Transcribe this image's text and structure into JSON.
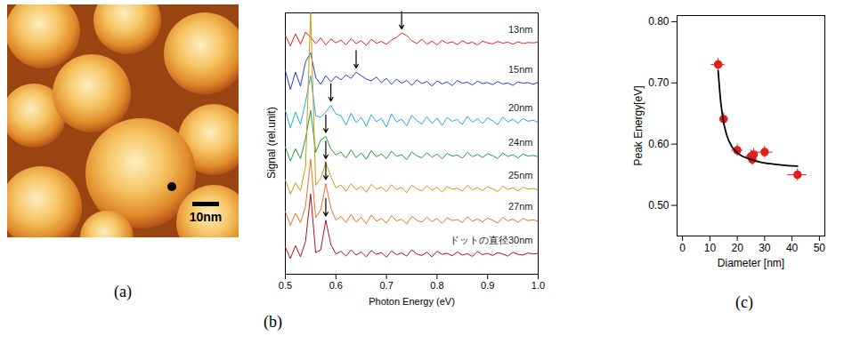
{
  "chart_data": [
    {
      "type": "image",
      "panel": "(a)",
      "scale_bar": "10nm"
    },
    {
      "type": "line",
      "panel": "(b)",
      "xlabel": "Photon Energy (eV)",
      "ylabel": "Signal (rel.unit)",
      "xlim": [
        0.5,
        1.0
      ],
      "ylim": [
        0,
        7.5
      ],
      "xticks": [
        0.5,
        0.6,
        0.7,
        0.8,
        0.9,
        {
          "value": 1,
          "label": "1.0"
        }
      ],
      "tick_labels": "x",
      "x": [
        0.5,
        0.51,
        0.52,
        0.53,
        0.54,
        0.55,
        0.56,
        0.57,
        0.58,
        0.59,
        0.6,
        0.61,
        0.62,
        0.63,
        0.64,
        0.65,
        0.66,
        0.67,
        0.68,
        0.69,
        0.7,
        0.71,
        0.72,
        0.73,
        0.74,
        0.75,
        0.76,
        0.77,
        0.78,
        0.79,
        0.8,
        0.81,
        0.82,
        0.83,
        0.84,
        0.85,
        0.86,
        0.87,
        0.88,
        0.89,
        0.9,
        0.91,
        0.92,
        0.93,
        0.94,
        0.95,
        0.96,
        0.97,
        0.98,
        0.99,
        1.0
      ],
      "series": [
        {
          "name": "13nm",
          "color": "#e8201c",
          "peak": 0.73,
          "values": [
            6.85,
            6.55,
            6.9,
            6.6,
            6.95,
            6.8,
            6.62,
            6.78,
            6.58,
            6.75,
            6.64,
            6.72,
            6.58,
            6.76,
            6.62,
            6.7,
            6.57,
            6.74,
            6.63,
            6.68,
            6.6,
            6.72,
            6.8,
            6.92,
            6.85,
            6.7,
            6.62,
            6.74,
            6.6,
            6.69,
            6.58,
            6.71,
            6.63,
            6.67,
            6.59,
            6.7,
            6.62,
            6.66,
            6.58,
            6.69,
            6.64,
            6.61,
            6.68,
            6.63,
            6.66,
            6.6,
            6.67,
            6.62,
            6.65,
            6.64,
            6.66
          ]
        },
        {
          "name": "15nm",
          "color": "#2040d0",
          "peak": 0.64,
          "values": [
            5.85,
            5.3,
            5.8,
            5.4,
            6.1,
            6.35,
            5.65,
            5.45,
            5.7,
            5.52,
            5.68,
            5.58,
            5.72,
            5.62,
            5.8,
            5.7,
            5.6,
            5.55,
            5.66,
            5.5,
            5.62,
            5.45,
            5.6,
            5.48,
            5.56,
            5.42,
            5.58,
            5.47,
            5.53,
            5.4,
            5.55,
            5.46,
            5.52,
            5.41,
            5.56,
            5.48,
            5.51,
            5.43,
            5.54,
            5.47,
            5.5,
            5.44,
            5.53,
            5.46,
            5.49,
            5.42,
            5.52,
            5.48,
            5.5,
            5.45,
            5.51
          ]
        },
        {
          "name": "20nm",
          "color": "#20a8e8",
          "peak": 0.59,
          "values": [
            4.7,
            4.2,
            4.65,
            4.3,
            4.95,
            5.7,
            4.55,
            4.5,
            4.65,
            4.85,
            4.6,
            4.55,
            4.28,
            4.62,
            4.35,
            4.5,
            4.25,
            4.58,
            4.38,
            4.47,
            4.22,
            4.6,
            4.37,
            4.45,
            4.26,
            4.56,
            4.41,
            4.31,
            4.52,
            4.33,
            4.48,
            4.27,
            4.5,
            4.39,
            4.44,
            4.3,
            4.53,
            4.36,
            4.46,
            4.32,
            4.49,
            4.4,
            4.29,
            4.51,
            4.37,
            4.45,
            4.33,
            4.47,
            4.39,
            4.42,
            4.36
          ]
        },
        {
          "name": "24nm",
          "color": "#20a040",
          "peak": 0.58,
          "values": [
            3.65,
            3.25,
            3.6,
            3.32,
            3.9,
            4.7,
            3.5,
            3.85,
            3.95,
            3.6,
            3.42,
            3.51,
            3.33,
            3.57,
            3.35,
            3.48,
            3.3,
            3.55,
            3.37,
            3.45,
            3.32,
            3.53,
            3.38,
            3.43,
            3.29,
            3.51,
            3.4,
            3.34,
            3.49,
            3.36,
            3.45,
            3.31,
            3.47,
            3.39,
            3.42,
            3.33,
            3.5,
            3.37,
            3.44,
            3.35,
            3.46,
            3.4,
            3.32,
            3.48,
            3.38,
            3.43,
            3.34,
            3.45,
            3.39,
            3.41,
            3.37
          ]
        },
        {
          "name": "25nm",
          "color": "#c89a10",
          "peak": 0.58,
          "values": [
            2.7,
            2.3,
            2.62,
            2.4,
            3.1,
            7.5,
            2.55,
            2.75,
            3.2,
            2.8,
            2.48,
            2.56,
            2.38,
            2.6,
            2.42,
            2.53,
            2.35,
            2.58,
            2.44,
            2.5,
            2.37,
            2.57,
            2.43,
            2.49,
            2.34,
            2.56,
            2.45,
            2.39,
            2.54,
            2.41,
            2.5,
            2.36,
            2.52,
            2.44,
            2.47,
            2.38,
            2.55,
            2.42,
            2.49,
            2.4,
            2.51,
            2.45,
            2.37,
            2.53,
            2.43,
            2.48,
            2.39,
            2.5,
            2.44,
            2.46,
            2.42
          ]
        },
        {
          "name": "27nm",
          "color": "#f07020",
          "peak": 0.58,
          "values": [
            1.8,
            1.4,
            1.75,
            1.48,
            1.95,
            3.3,
            1.62,
            1.85,
            2.6,
            1.9,
            1.55,
            1.66,
            1.48,
            1.72,
            1.5,
            1.63,
            1.45,
            1.7,
            1.52,
            1.6,
            1.47,
            1.68,
            1.53,
            1.58,
            1.44,
            1.66,
            1.55,
            1.49,
            1.64,
            1.51,
            1.6,
            1.46,
            1.62,
            1.54,
            1.57,
            1.48,
            1.65,
            1.52,
            1.59,
            1.5,
            1.61,
            1.55,
            1.47,
            1.63,
            1.53,
            1.58,
            1.49,
            1.6,
            1.54,
            1.56,
            1.52
          ]
        },
        {
          "name": "ドットの直径30nm",
          "color": "#b01020",
          "peak": 0.58,
          "values": [
            0.78,
            0.45,
            0.82,
            0.5,
            0.95,
            2.3,
            0.62,
            0.7,
            1.55,
            0.85,
            0.58,
            0.66,
            0.52,
            0.7,
            0.55,
            0.64,
            0.5,
            0.68,
            0.57,
            0.62,
            0.49,
            0.67,
            0.56,
            0.61,
            0.52,
            0.7,
            0.58,
            0.54,
            0.63,
            0.5,
            0.66,
            0.57,
            0.6,
            0.53,
            0.64,
            0.55,
            0.59,
            0.51,
            0.65,
            0.56,
            0.6,
            0.54,
            0.62,
            0.58,
            0.52,
            0.63,
            0.57,
            0.55,
            0.61,
            0.58,
            0.6
          ]
        }
      ]
    },
    {
      "type": "scatter",
      "panel": "(c)",
      "xlabel": "Diameter [nm]",
      "ylabel": "Peak Energy[eV]",
      "xlim": [
        -2,
        52
      ],
      "ylim": [
        0.45,
        0.81
      ],
      "xticks": [
        0,
        10,
        20,
        30,
        40,
        50
      ],
      "yticks": [
        {
          "value": 0.5,
          "label": "0.50"
        },
        {
          "value": 0.6,
          "label": "0.60"
        },
        {
          "value": 0.7,
          "label": "0.70"
        },
        {
          "value": 0.8,
          "label": "0.80"
        }
      ],
      "series": [
        {
          "type": "scatter",
          "color": "#e0201c",
          "marker": "circle",
          "x": [
            13,
            15,
            20,
            25,
            25.5,
            26,
            30,
            42
          ],
          "values": [
            0.73,
            0.641,
            0.59,
            0.58,
            0.575,
            0.583,
            0.587,
            0.55
          ],
          "x_err": [
            2.5,
            1.5,
            2,
            2,
            1.5,
            1.5,
            3,
            3.5
          ],
          "y_err": [
            0.01,
            0.01,
            0.01,
            0.01,
            0.01,
            0.01,
            0.01,
            0.01
          ]
        },
        {
          "type": "line",
          "color": "#000000",
          "x": [
            13,
            14,
            15,
            16,
            18,
            20,
            22,
            25,
            28,
            32,
            36,
            42
          ],
          "values": [
            0.72,
            0.667,
            0.636,
            0.617,
            0.596,
            0.586,
            0.58,
            0.575,
            0.571,
            0.568,
            0.566,
            0.564
          ]
        }
      ]
    }
  ]
}
